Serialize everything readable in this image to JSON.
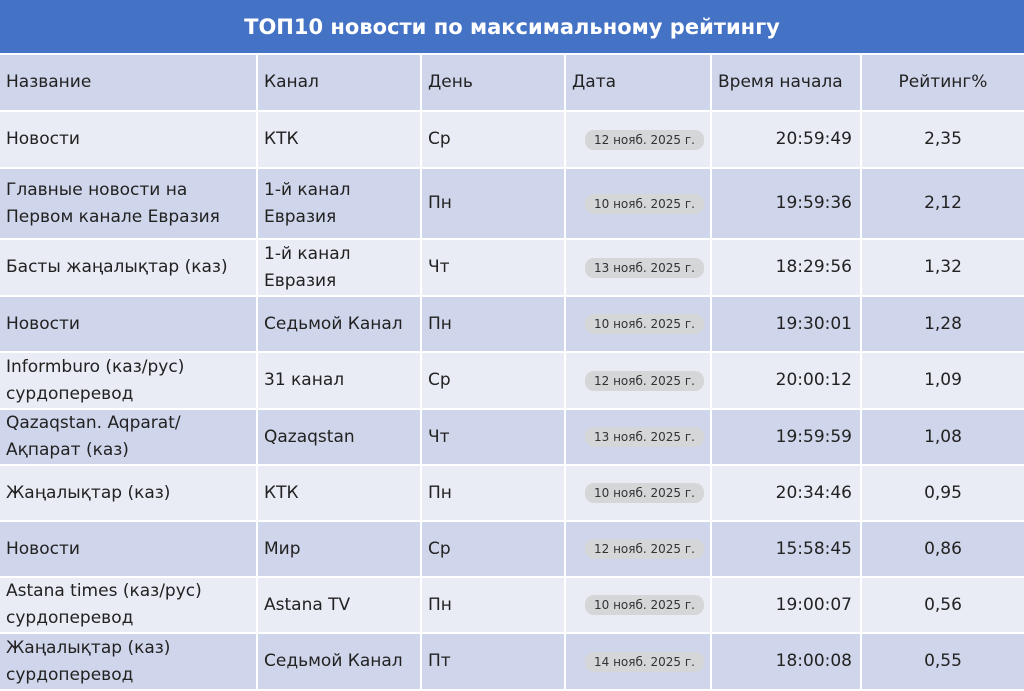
{
  "title": "ТОП10 новости по максимальному рейтингу",
  "columns": [
    "Название",
    "Канал",
    "День",
    "Дата",
    "Время начала",
    "Рейтинг%"
  ],
  "rows": [
    {
      "name": "Новости",
      "channel": "КТК",
      "day": "Ср",
      "date": "12 нояб. 2025 г.",
      "time": "20:59:49",
      "rating": "2,35"
    },
    {
      "name": "Главные новости на Первом канале Евразия",
      "channel": "1-й канал Евразия",
      "day": "Пн",
      "date": "10 нояб. 2025 г.",
      "time": "19:59:36",
      "rating": "2,12"
    },
    {
      "name": "Басты жаңалықтар (каз)",
      "channel": "1-й канал Евразия",
      "day": "Чт",
      "date": "13 нояб. 2025 г.",
      "time": "18:29:56",
      "rating": "1,32"
    },
    {
      "name": "Новости",
      "channel": "Седьмой Канал",
      "day": "Пн",
      "date": "10 нояб. 2025 г.",
      "time": "19:30:01",
      "rating": "1,28"
    },
    {
      "name": "Informburo (каз/рус) сурдоперевод",
      "channel": "31 канал",
      "day": "Ср",
      "date": "12 нояб. 2025 г.",
      "time": "20:00:12",
      "rating": "1,09"
    },
    {
      "name": "Qazaqstan. Aqparat/ Ақпарат (каз)",
      "channel": "Qazaqstan",
      "day": "Чт",
      "date": "13 нояб. 2025 г.",
      "time": "19:59:59",
      "rating": "1,08"
    },
    {
      "name": "Жаңалықтар (каз)",
      "channel": "КТК",
      "day": "Пн",
      "date": "10 нояб. 2025 г.",
      "time": "20:34:46",
      "rating": "0,95"
    },
    {
      "name": "Новости",
      "channel": "Мир",
      "day": "Ср",
      "date": "12 нояб. 2025 г.",
      "time": "15:58:45",
      "rating": "0,86"
    },
    {
      "name": "Astana times (каз/рус) сурдоперевод",
      "channel": "Astana TV",
      "day": "Пн",
      "date": "10 нояб. 2025 г.",
      "time": "19:00:07",
      "rating": "0,56"
    },
    {
      "name": "Жаңалықтар (каз) сурдоперевод",
      "channel": "Седьмой Канал",
      "day": "Пт",
      "date": "14 нояб. 2025 г.",
      "time": "18:00:08",
      "rating": "0,55"
    }
  ],
  "colors": {
    "title_bg": "#4472C4",
    "row_light": "#E9EBF5",
    "row_dark": "#CFD5EA",
    "date_pill": "#D5D6D8"
  }
}
